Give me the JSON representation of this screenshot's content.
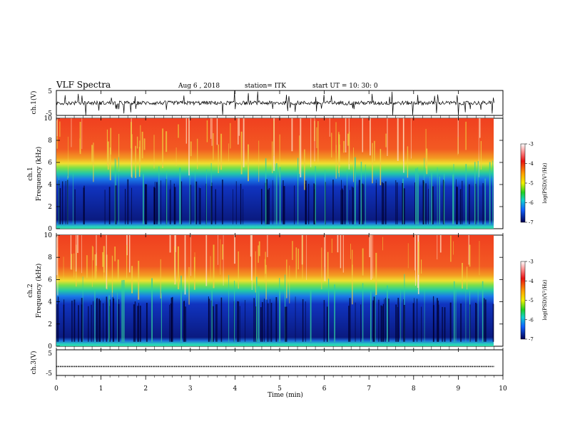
{
  "header": {
    "title": "VLF Spectra",
    "date": "Aug 6 , 2018",
    "station": "station= ITK",
    "start": "start UT = 10: 30: 0"
  },
  "panels": {
    "ch1_wave_label": "ch.1(V)",
    "ch3_wave_label": "ch.3(V)",
    "ch1_spec_label": "ch.1",
    "ch2_spec_label": "ch.2",
    "freq_label": "Frequency (kHz)"
  },
  "colorbar": {
    "label": "log(PSD)(V²/Hz)",
    "ticks": [
      "-3",
      "-4",
      "-5",
      "-6",
      "-7"
    ],
    "range": [
      -7,
      -3
    ]
  },
  "chart_data": [
    {
      "type": "line",
      "title": "ch.1(V)",
      "ylabel": "ch.1(V)",
      "x_range": [
        0,
        10
      ],
      "ylim": [
        -5,
        5
      ],
      "y_ticks": [
        "5",
        "-5"
      ],
      "baseline": 0,
      "note_values": "noisy waveform centered near 0 V with spikes to about ±5 V"
    },
    {
      "type": "heatmap",
      "title": "ch.1",
      "xlabel": "Time (min)",
      "ylabel": "Frequency (kHz)",
      "x_range": [
        0,
        9.8
      ],
      "ylim": [
        0,
        10
      ],
      "y_ticks": [
        "0",
        "2",
        "4",
        "6",
        "8",
        "10"
      ],
      "color_scale": "log(PSD)(V²/Hz)",
      "color_range": [
        -7,
        -3
      ],
      "band_boundaries_khz": {
        "dark_below": 4.2,
        "green_band": [
          4.2,
          5.5
        ],
        "red_above": 6.5
      }
    },
    {
      "type": "heatmap",
      "title": "ch.2",
      "xlabel": "Time (min)",
      "ylabel": "Frequency (kHz)",
      "x_range": [
        0,
        9.8
      ],
      "ylim": [
        0,
        10
      ],
      "y_ticks": [
        "0",
        "2",
        "4",
        "6",
        "8",
        "10"
      ],
      "color_scale": "log(PSD)(V²/Hz)",
      "color_range": [
        -7,
        -3
      ],
      "band_boundaries_khz": {
        "dark_below": 4.2,
        "green_band": [
          4.2,
          5.5
        ],
        "red_above": 6.5
      }
    },
    {
      "type": "line",
      "title": "ch.3(V)",
      "ylabel": "ch.3(V)",
      "x_range": [
        0,
        9.8
      ],
      "ylim": [
        -5,
        5
      ],
      "y_ticks": [
        "5",
        "-5"
      ],
      "baseline": -1.5
    }
  ],
  "xaxis": {
    "label": "Time (min)",
    "ticks": [
      "0",
      "1",
      "2",
      "3",
      "4",
      "5",
      "6",
      "7",
      "8",
      "9",
      "10"
    ],
    "range": [
      0,
      10
    ]
  }
}
